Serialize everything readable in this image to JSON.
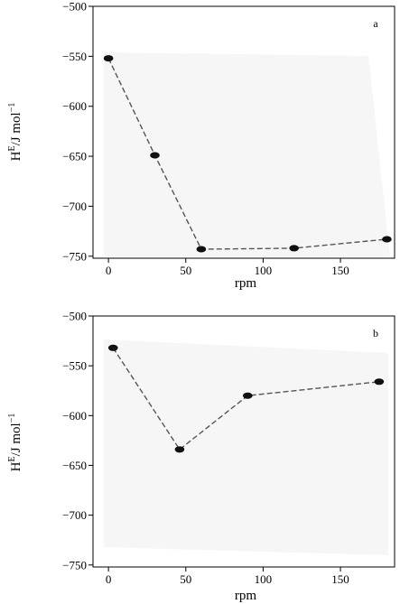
{
  "chart_data": [
    {
      "type": "line",
      "panel_label": "a",
      "xlabel": "rpm",
      "ylabel_base": "H",
      "ylabel_sup": "E",
      "ylabel_mid": "/J mol",
      "ylabel_exp": "−1",
      "xlim": [
        -10,
        185
      ],
      "ylim": [
        -752,
        -500
      ],
      "xticks": [
        0,
        50,
        100,
        150
      ],
      "xtick_labels": [
        "0",
        "50",
        "100",
        "150"
      ],
      "yticks": [
        -500,
        -550,
        -600,
        -650,
        -700,
        -750
      ],
      "ytick_labels": [
        "−500",
        "−550",
        "−600",
        "−650",
        "−700",
        "−750"
      ],
      "grid": false,
      "series": [
        {
          "x": [
            0,
            30,
            60,
            120,
            180
          ],
          "y": [
            -552,
            -649,
            -743,
            -742,
            -733
          ]
        }
      ]
    },
    {
      "type": "line",
      "panel_label": "b",
      "xlabel": "rpm",
      "ylabel_base": "H",
      "ylabel_sup": "E",
      "ylabel_mid": "/J mol",
      "ylabel_exp": "−1",
      "xlim": [
        -10,
        185
      ],
      "ylim": [
        -752,
        -500
      ],
      "xticks": [
        0,
        50,
        100,
        150
      ],
      "xtick_labels": [
        "0",
        "50",
        "100",
        "150"
      ],
      "yticks": [
        -500,
        -550,
        -600,
        -650,
        -700,
        -750
      ],
      "ytick_labels": [
        "−500",
        "−550",
        "−600",
        "−650",
        "−700",
        "−750"
      ],
      "grid": false,
      "series": [
        {
          "x": [
            3,
            46,
            90,
            175
          ],
          "y": [
            -532,
            -634,
            -580,
            -566
          ]
        }
      ]
    }
  ]
}
